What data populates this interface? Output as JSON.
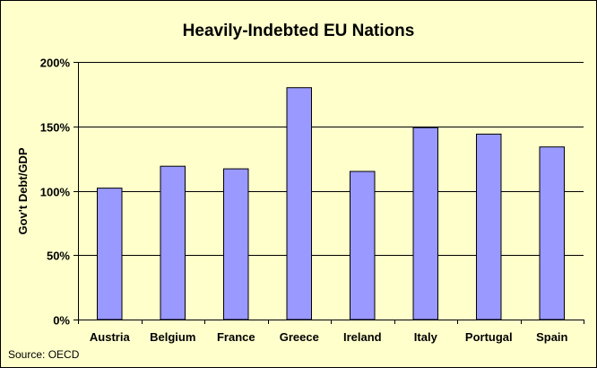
{
  "chart_data": {
    "type": "bar",
    "title": "Heavily-Indebted EU Nations",
    "ylabel": "Gov't Debt/GDP",
    "xlabel": "",
    "categories": [
      "Austria",
      "Belgium",
      "France",
      "Greece",
      "Ireland",
      "Italy",
      "Portugal",
      "Spain"
    ],
    "values": [
      102,
      119,
      117,
      180,
      115,
      149,
      144,
      134
    ],
    "value_unit": "%",
    "ylim": [
      0,
      200
    ],
    "yticks": [
      0,
      50,
      100,
      150,
      200
    ],
    "ytick_labels": [
      "0%",
      "50%",
      "100%",
      "150%",
      "200%"
    ],
    "grid": true,
    "legend": "none",
    "source_note": "Source: OECD",
    "colors": {
      "frame_background": "#ffffcc",
      "plot_background": "#ffffcc",
      "bar_fill": "#9999ff",
      "bar_stroke": "#000000",
      "gridline": "#000000"
    }
  }
}
